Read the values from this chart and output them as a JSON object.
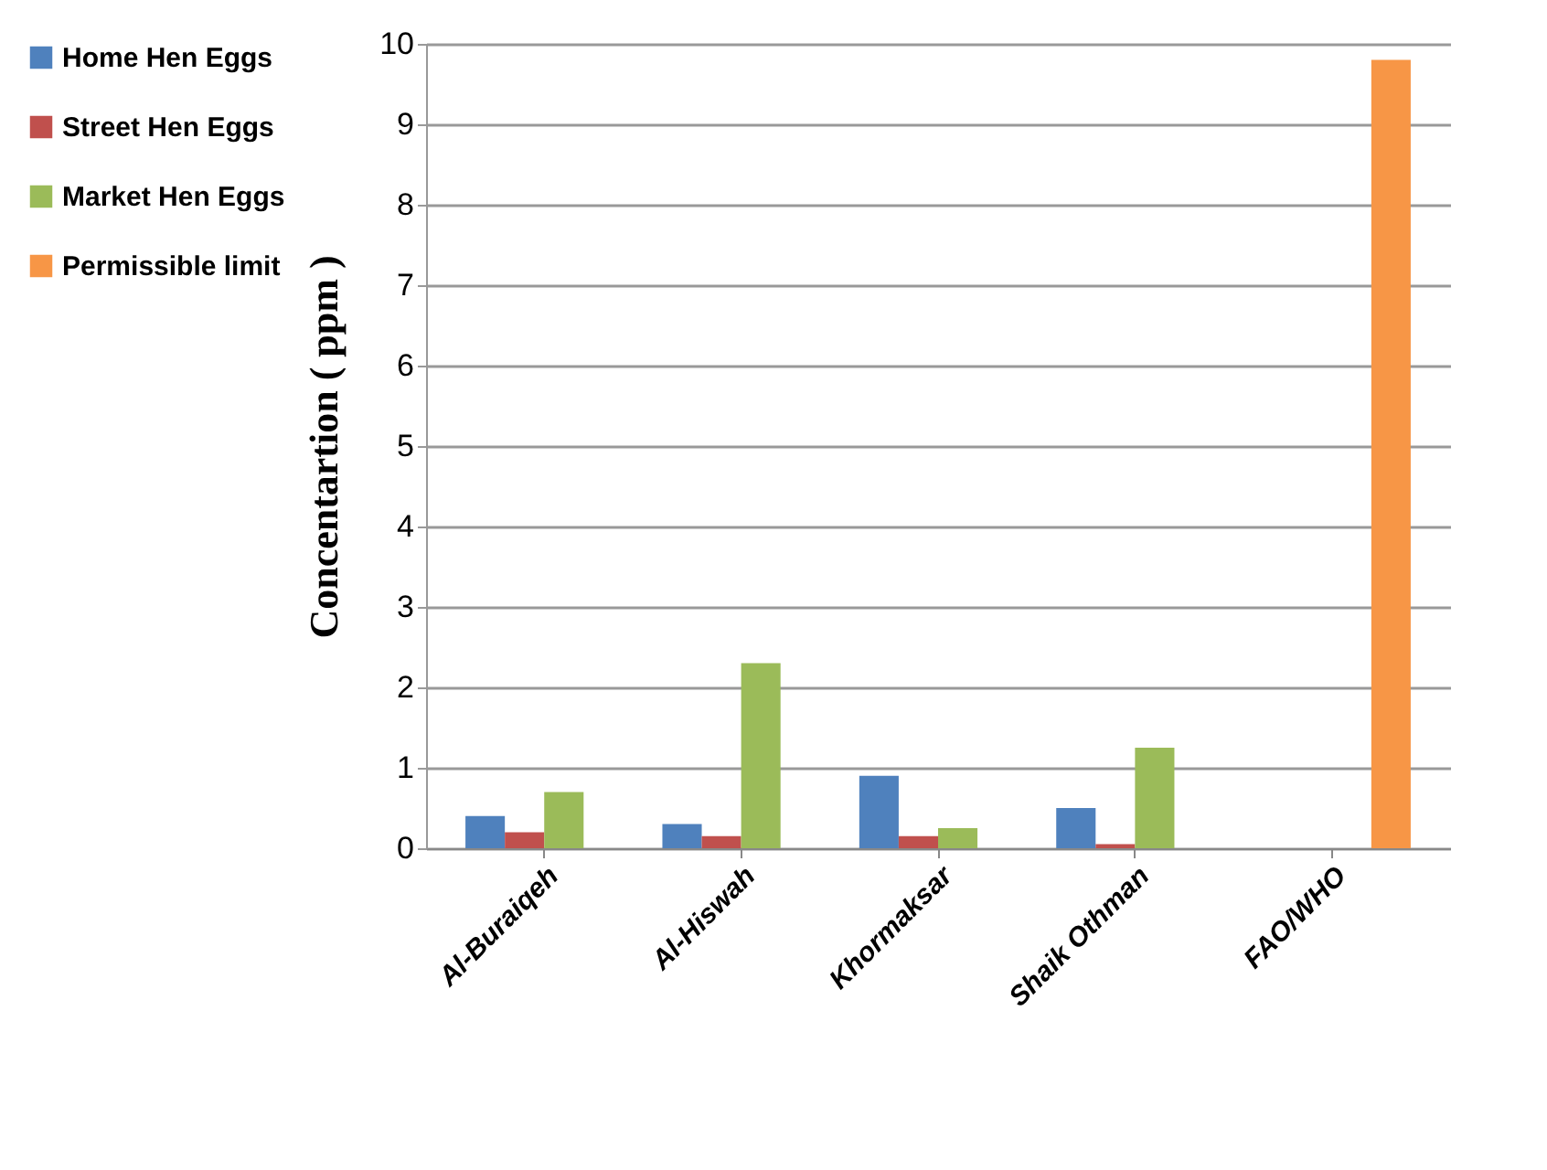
{
  "chart_data": {
    "type": "bar",
    "ylabel": "Concentartion ( ppm )",
    "categories": [
      "Al-Buraiqeh",
      "Al-Hiswah",
      "Khormaksar",
      "Shaik Othman",
      "FAO/WHO"
    ],
    "series": [
      {
        "name": "Home Hen Eggs",
        "color": "#4f81bd",
        "values": [
          0.4,
          0.3,
          0.9,
          0.5,
          null
        ]
      },
      {
        "name": "Street Hen Eggs",
        "color": "#c0504d",
        "values": [
          0.2,
          0.15,
          0.15,
          0.05,
          null
        ]
      },
      {
        "name": "Market Hen Eggs",
        "color": "#9bbb59",
        "values": [
          0.7,
          2.3,
          0.25,
          1.25,
          null
        ]
      },
      {
        "name": "Permissible limit",
        "color": "#f79646",
        "values": [
          null,
          null,
          null,
          null,
          9.8
        ]
      }
    ],
    "ylim": [
      0,
      10
    ],
    "yticks": [
      0,
      1,
      2,
      3,
      4,
      5,
      6,
      7,
      8,
      9,
      10
    ],
    "grid": "y",
    "legend": "left"
  }
}
